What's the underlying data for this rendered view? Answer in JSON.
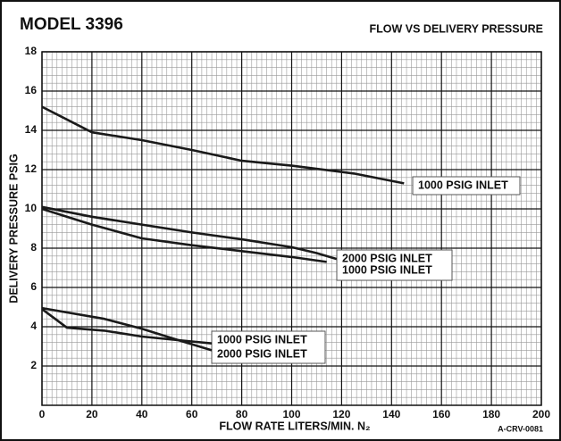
{
  "chart_data": {
    "type": "line",
    "title": "MODEL 3396",
    "subtitle": "FLOW VS DELIVERY PRESSURE",
    "x_label": "FLOW RATE LITERS/MIN. N₂",
    "y_label": "DELIVERY PRESSURE PSIG",
    "note": "A-CRV-0081",
    "xlim": [
      0,
      200
    ],
    "xticks": [
      0,
      20,
      40,
      60,
      80,
      100,
      120,
      140,
      160,
      180,
      200
    ],
    "ylim": [
      0,
      18
    ],
    "yticks": [
      2,
      4,
      6,
      8,
      10,
      12,
      14,
      16,
      18
    ],
    "grid": true,
    "minor_grid": true,
    "series": [
      {
        "name": "1000 PSIG INLET",
        "color": "#1a1a1a",
        "x": [
          0,
          20,
          40,
          60,
          80,
          100,
          125,
          145
        ],
        "values": [
          15.2,
          13.9,
          13.5,
          13.0,
          12.45,
          12.2,
          11.8,
          11.3
        ]
      },
      {
        "name": "2000 PSIG INLET",
        "color": "#1a1a1a",
        "x": [
          0,
          20,
          40,
          60,
          80,
          100,
          110,
          118
        ],
        "values": [
          10.1,
          9.6,
          9.2,
          8.8,
          8.45,
          8.05,
          7.75,
          7.45
        ]
      },
      {
        "name": "1000 PSIG INLET",
        "color": "#1a1a1a",
        "x": [
          0,
          20,
          40,
          60,
          80,
          100,
          114
        ],
        "values": [
          10.0,
          9.2,
          8.5,
          8.15,
          7.85,
          7.55,
          7.3
        ]
      },
      {
        "name": "1000 PSIG INLET",
        "color": "#1a1a1a",
        "x": [
          0,
          10,
          25,
          40,
          60,
          68
        ],
        "values": [
          4.9,
          3.95,
          3.8,
          3.5,
          3.25,
          3.15
        ]
      },
      {
        "name": "2000 PSIG INLET",
        "color": "#1a1a1a",
        "x": [
          0,
          25,
          40,
          55,
          68
        ],
        "values": [
          4.95,
          4.4,
          3.9,
          3.3,
          2.8
        ]
      }
    ]
  }
}
